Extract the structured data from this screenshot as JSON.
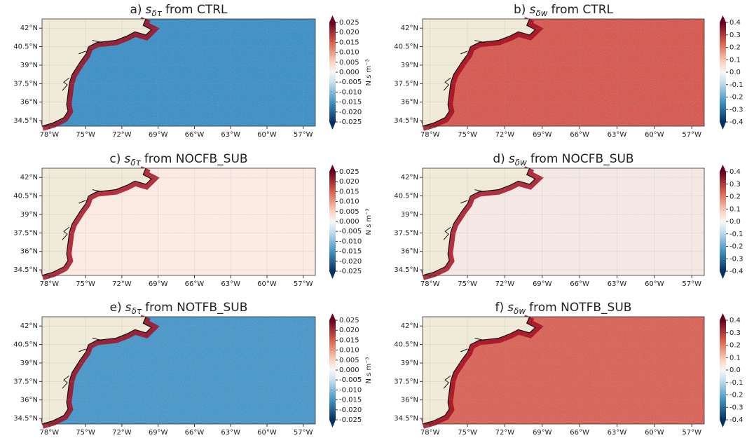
{
  "xlim": [
    -78.6,
    -56
  ],
  "ylim": [
    34.05,
    42.75
  ],
  "lat_ticks": [
    {
      "value": 42,
      "label": "42°N"
    },
    {
      "value": 40.5,
      "label": "40.5°N"
    },
    {
      "value": 39,
      "label": "39°N"
    },
    {
      "value": 37.5,
      "label": "37.5°N"
    },
    {
      "value": 36,
      "label": "36°N"
    },
    {
      "value": 34.5,
      "label": "34.5°N"
    }
  ],
  "lon_ticks": [
    {
      "value": -78,
      "label": "78°W"
    },
    {
      "value": -75,
      "label": "75°W"
    },
    {
      "value": -72,
      "label": "72°W"
    },
    {
      "value": -69,
      "label": "69°W"
    },
    {
      "value": -66,
      "label": "66°W"
    },
    {
      "value": -63,
      "label": "63°W"
    },
    {
      "value": -60,
      "label": "60°W"
    },
    {
      "value": -57,
      "label": "57°W"
    }
  ],
  "columns": [
    {
      "colorbar": {
        "label": "N s m⁻³",
        "ticks": [
          0.025,
          {
            "value": 0.02,
            "label": "0.020"
          },
          0.015,
          {
            "value": 0.01,
            "label": "0.010"
          },
          0.005,
          {
            "value": 0,
            "label": "0.000"
          },
          -0.005,
          {
            "value": -0.01,
            "label": "-0.010"
          },
          -0.015,
          {
            "value": -0.02,
            "label": "-0.020"
          },
          -0.025
        ]
      },
      "panels": [
        {
          "label": "a)",
          "var": "s",
          "sub": "δτ",
          "source": "from CTRL",
          "ocean_color": "#3f8fc4"
        },
        {
          "label": "c)",
          "var": "s",
          "sub": "δτ",
          "source": "from NOCFB_SUB",
          "ocean_color": "#fbe9e2"
        },
        {
          "label": "e)",
          "var": "s",
          "sub": "δτ",
          "source": "from NOTFB_SUB",
          "ocean_color": "#4a97c8"
        }
      ]
    },
    {
      "colorbar": {
        "ticks": [
          0.4,
          0.3,
          0.2,
          0.1,
          {
            "value": 0,
            "label": "0.0"
          },
          -0.1,
          -0.2,
          -0.3,
          -0.4
        ]
      },
      "panels": [
        {
          "label": "b)",
          "var": "s",
          "sub": "δw",
          "source": "from CTRL",
          "ocean_color": "#d35a52"
        },
        {
          "label": "d)",
          "var": "s",
          "sub": "δw",
          "source": "from NOCFB_SUB",
          "ocean_color": "#f4e7e4"
        },
        {
          "label": "f)",
          "var": "s",
          "sub": "δw",
          "source": "from NOTFB_SUB",
          "ocean_color": "#d76459"
        }
      ]
    }
  ]
}
